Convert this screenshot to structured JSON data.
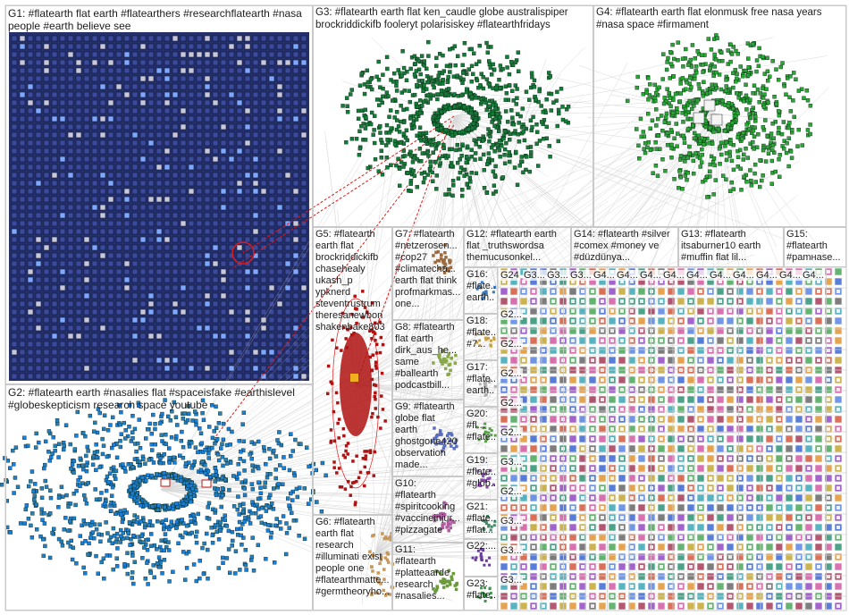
{
  "colors": {
    "g1_bg": "#25306a",
    "g1_node": "#1e2a78",
    "g2": "#1e7fd0",
    "g3": "#167a3a",
    "g4": "#2aa637",
    "g5": "#b01212",
    "g6": "#c9975a",
    "edge": "#b9b9b9",
    "highlight_edge": "#e11a1a"
  },
  "groups": [
    {
      "id": "G1",
      "label": "G1: #flatearth flat earth #flatearthers #researchflatearth #nasa\npeople #earth believe see"
    },
    {
      "id": "G2",
      "label": "G2: #flatearth earth #nasalies flat #spaceisfake #earthislevel\n#globeskepticism research space youtube"
    },
    {
      "id": "G3",
      "label": "G3: #flatearth earth flat ken_caudle globe australispiper\nbrockriddickifb fooleryt polarisiskey #flatearthfridays"
    },
    {
      "id": "G4",
      "label": "G4: #flatearth earth flat elonmusk free nasa years\n#nasa space #firmament"
    },
    {
      "id": "G5",
      "label": "G5: #flatearth\nearth flat\nbrockriddickifb\nchasehealy\nukash_p\nypknerd\nsteventrustrum\ntheresanewbon\nshakenbake803"
    },
    {
      "id": "G6",
      "label": "G6: #flatearth\nearth flat\nresearch\n#illuminati exist\npeople one\n#flatearthmatte...\n#germtheoryho..."
    },
    {
      "id": "G7",
      "label": "G7: #flatearth\n#netzerosen...\n#cop27\n#climatecha...\nearth flat think\nprofmarkmas...\none..."
    },
    {
      "id": "G8",
      "label": "G8: #flatearth\nflat earth\ndirk_aus_he...\nsame\n#ballearth\npodcastbill..."
    },
    {
      "id": "G9",
      "label": "G9: #flatearth\nglobe flat\nearth\nghostgone420\nobservation\nmade..."
    },
    {
      "id": "G10",
      "label": "G10:\n#flatearth\n#spiritcooking\n#vaccineinjur...\n#pizzagate"
    },
    {
      "id": "G11",
      "label": "G11:\n#flatearth\n#platteaarde\nresearch\n#nasalies..."
    },
    {
      "id": "G12",
      "label": "G12: #flatearth earth\nflat _truthswordsa\nthemucusonkel..."
    },
    {
      "id": "G13",
      "label": "G13: #flatearth\nitsaburner10 earth\n#muffin flat lil..."
    },
    {
      "id": "G14",
      "label": "G14: #flatearth #silver\n#comex #money ve\n#düzdünya..."
    },
    {
      "id": "G15",
      "label": "G15:\n#flatearth\n#pamнase..."
    },
    {
      "id": "G16",
      "label": "G16:\n#flate...\nearth..."
    },
    {
      "id": "G17",
      "label": "G17:\n#flate...\nearth..."
    },
    {
      "id": "G18",
      "label": "G18:\n#flate...\n#7..."
    },
    {
      "id": "G19",
      "label": "G19:\n#flate...\n#glob..."
    },
    {
      "id": "G20",
      "label": "G20:\n#fl...\n#flate..."
    },
    {
      "id": "G21",
      "label": "G21:\n#flate...\n#flat..."
    },
    {
      "id": "G22",
      "label": "G22:..."
    },
    {
      "id": "G23",
      "label": "G23:\n#flate..."
    }
  ],
  "small_group_labels": {
    "col_a": [
      "G2...",
      "G2...",
      "G2...",
      "G2...",
      "G2...",
      "G3...",
      "G2...",
      "G3...",
      "G3...",
      "G3..."
    ],
    "top_row": [
      "G24",
      "G3...",
      "G3...",
      "G3...",
      "G4...",
      "G4...",
      "G4...",
      "G4...",
      "G4...",
      "G4...",
      "G4...",
      "G4...",
      "G4...",
      "G4..."
    ],
    "tiny": [
      "G",
      "G",
      "G",
      "G",
      "G",
      "G"
    ]
  }
}
